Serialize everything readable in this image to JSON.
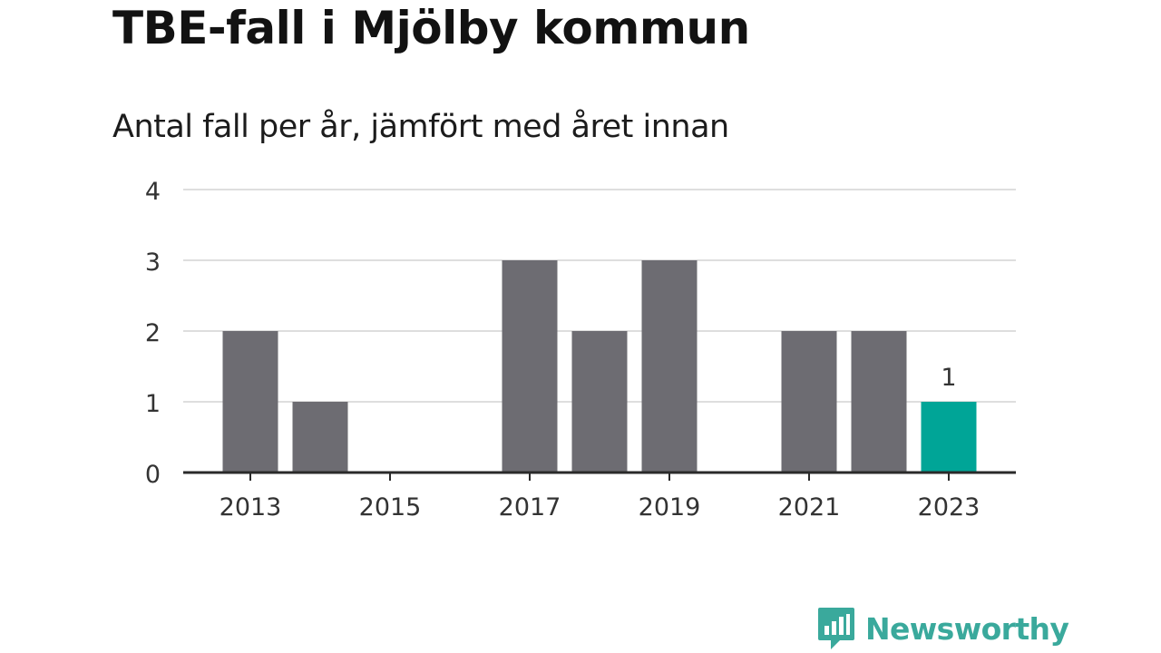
{
  "title": "TBE-fall i Mjölby kommun",
  "subtitle": "Antal fall per år, jämfört med året innan",
  "brand": {
    "name": "Newsworthy",
    "icon": "newsworthy-logo-icon"
  },
  "colors": {
    "bar": "#6d6c72",
    "highlight": "#00a597",
    "grid": "#dedede",
    "axis": "#2a2a2a",
    "brand": "#3aa99c"
  },
  "chart_data": {
    "type": "bar",
    "categories": [
      "2013",
      "2014",
      "2015",
      "2016",
      "2017",
      "2018",
      "2019",
      "2020",
      "2021",
      "2022",
      "2023"
    ],
    "values": [
      2,
      1,
      0,
      0,
      3,
      2,
      3,
      0,
      2,
      2,
      1
    ],
    "x_tick_labels": [
      "2013",
      "2015",
      "2017",
      "2019",
      "2021",
      "2023"
    ],
    "y_ticks": [
      0,
      1,
      2,
      3,
      4
    ],
    "ylim": [
      0,
      4
    ],
    "highlight": {
      "category": "2023",
      "value": 1,
      "label": "1"
    },
    "xlabel": "",
    "ylabel": "",
    "grid": true,
    "legend": "none"
  }
}
